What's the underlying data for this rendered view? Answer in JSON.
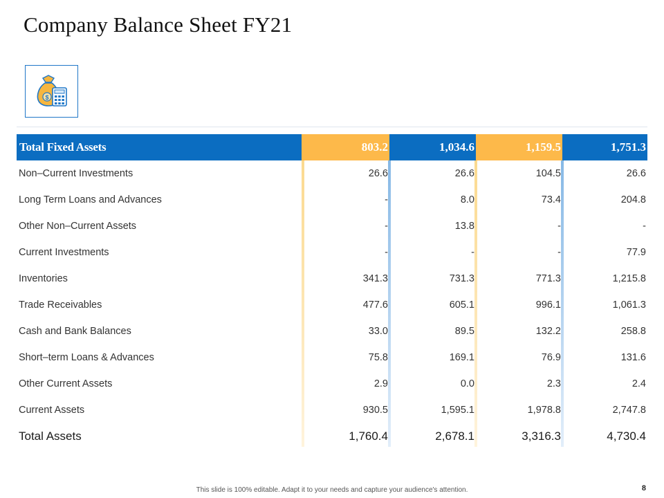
{
  "slide": {
    "title": "Company Balance Sheet FY21",
    "footer_note": "This slide is 100% editable. Adapt it to your needs and capture your audience's attention.",
    "page_number": "8",
    "icon": "money-bag-calculator-icon"
  },
  "colors": {
    "header_blue": "#0b6dc1",
    "header_amber": "#fdb94a",
    "icon_border": "#1f77c8"
  },
  "table": {
    "header": {
      "label": "Total Fixed Assets",
      "values": [
        "803.2",
        "1,034.6",
        "1,159.5",
        "1,751.3"
      ]
    },
    "rows": [
      {
        "label": "Non–Current Investments",
        "values": [
          "26.6",
          "26.6",
          "104.5",
          "26.6"
        ]
      },
      {
        "label": "Long Term Loans and Advances",
        "values": [
          "-",
          "8.0",
          "73.4",
          "204.8"
        ]
      },
      {
        "label": "Other Non–Current Assets",
        "values": [
          "-",
          "13.8",
          "-",
          "-"
        ]
      },
      {
        "label": "Current Investments",
        "values": [
          "-",
          "-",
          "-",
          "77.9"
        ]
      },
      {
        "label": "Inventories",
        "values": [
          "341.3",
          "731.3",
          "771.3",
          "1,215.8"
        ]
      },
      {
        "label": "Trade Receivables",
        "values": [
          "477.6",
          "605.1",
          "996.1",
          "1,061.3"
        ]
      },
      {
        "label": "Cash and Bank Balances",
        "values": [
          "33.0",
          "89.5",
          "132.2",
          "258.8"
        ]
      },
      {
        "label": "Short–term Loans & Advances",
        "values": [
          "75.8",
          "169.1",
          "76.9",
          "131.6"
        ]
      },
      {
        "label": "Other Current Assets",
        "values": [
          "2.9",
          "0.0",
          "2.3",
          "2.4"
        ]
      },
      {
        "label": "Current Assets",
        "values": [
          "930.5",
          "1,595.1",
          "1,978.8",
          "2,747.8"
        ]
      }
    ],
    "total": {
      "label": "Total Assets",
      "values": [
        "1,760.4",
        "2,678.1",
        "3,316.3",
        "4,730.4"
      ]
    }
  }
}
